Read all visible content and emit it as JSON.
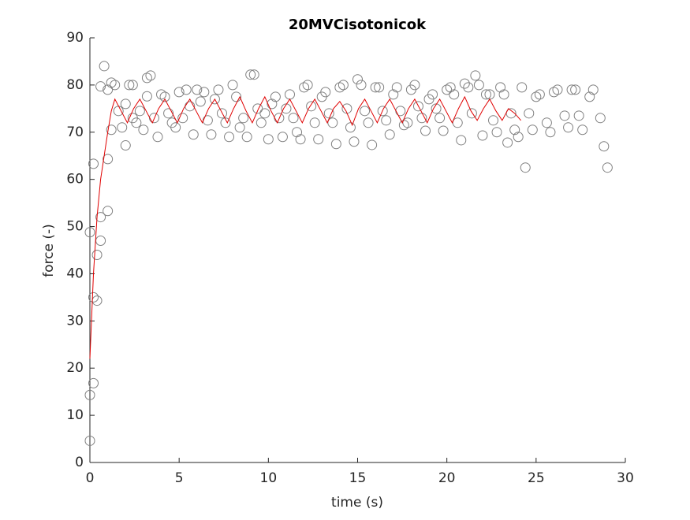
{
  "chart_data": {
    "type": "scatter",
    "title": "20MVCisotonicok",
    "x_label": "time (s)",
    "y_label": "force (-)",
    "xlim": [
      0,
      30
    ],
    "xticks": [
      0,
      5,
      10,
      15,
      20,
      25,
      30
    ],
    "ylim": [
      0,
      90
    ],
    "yticks": [
      0,
      10,
      20,
      30,
      40,
      50,
      60,
      70,
      80,
      90
    ],
    "series": [
      {
        "type": "scatter",
        "color": "#808080",
        "x": [
          0,
          0,
          0.2,
          0,
          0.2,
          0.2,
          0.4,
          0.4,
          0.6,
          0.6,
          1,
          1,
          0.6,
          0.8,
          1,
          1.2,
          1.2,
          1.4,
          1.6,
          1.8,
          2,
          2,
          2.2,
          2.4,
          2.4,
          2.6,
          2.8,
          3,
          3.2,
          3.4,
          3.2,
          3.6,
          3.8,
          4,
          4.2,
          4.4,
          4.6,
          4.8,
          5,
          5.2,
          5.4,
          5.6,
          5.8,
          6,
          6.2,
          6.4,
          6.6,
          6.8,
          7,
          7.2,
          7.4,
          7.6,
          7.8,
          8,
          8.2,
          8.4,
          8.6,
          8.8,
          9,
          9.2,
          9.4,
          9.6,
          9.8,
          10,
          10.2,
          10.4,
          10.6,
          10.8,
          11,
          11.2,
          11.4,
          11.6,
          11.8,
          12,
          12.2,
          12.4,
          12.6,
          12.8,
          13,
          13.2,
          13.4,
          13.6,
          13.8,
          14,
          14.2,
          14.4,
          14.6,
          14.8,
          15,
          15.2,
          15.4,
          15.6,
          15.8,
          16,
          16.2,
          16.4,
          16.6,
          16.8,
          17,
          17.2,
          17.4,
          17.6,
          17.8,
          18,
          18.2,
          18.4,
          18.6,
          18.8,
          19,
          19.2,
          19.4,
          19.6,
          19.8,
          20,
          20.2,
          20.4,
          20.6,
          20.8,
          21,
          21.2,
          21.4,
          21.6,
          21.8,
          22,
          22.2,
          22.4,
          22.6,
          22.8,
          23,
          23.2,
          23.4,
          23.6,
          23.8,
          24,
          24.2,
          24.4,
          24.6,
          24.8,
          25,
          25.2,
          25.6,
          25.8,
          26,
          26.2,
          26.6,
          26.8,
          27,
          27.2,
          27.4,
          27.6,
          28,
          28.2,
          28.6,
          28.8,
          29
        ],
        "values": [
          4.6,
          14.3,
          16.8,
          48.8,
          63.3,
          35,
          34.3,
          44,
          47,
          52,
          53.3,
          64.3,
          79.7,
          84,
          79,
          80.5,
          70.5,
          80,
          74.5,
          71,
          76,
          67.2,
          80,
          73,
          80,
          72,
          74.5,
          70.5,
          81.5,
          82,
          77.6,
          73,
          69,
          78,
          77.5,
          74,
          72,
          71,
          78.5,
          73,
          79,
          75.5,
          69.5,
          79,
          76.5,
          78.5,
          72.5,
          69.5,
          77,
          79,
          74,
          72,
          69,
          80,
          77.5,
          71,
          73,
          69,
          82.2,
          82.2,
          75,
          72,
          74,
          68.5,
          76,
          77.5,
          73,
          69,
          75,
          78,
          73,
          70,
          68.5,
          79.5,
          80,
          75.5,
          72,
          68.5,
          77.5,
          78.5,
          74,
          72,
          67.5,
          79.5,
          80,
          75,
          71,
          68,
          81.2,
          80,
          74.5,
          72,
          67.3,
          79.5,
          79.5,
          74.5,
          72.5,
          69.5,
          78,
          79.5,
          74.5,
          71.5,
          72,
          79,
          80,
          75.5,
          73,
          70.3,
          77,
          78,
          75,
          73,
          70.3,
          79,
          79.5,
          78,
          72,
          68.3,
          80.3,
          79.5,
          74,
          82,
          80,
          69.3,
          78,
          78,
          72.5,
          70,
          79.5,
          78,
          67.8,
          74,
          70.5,
          69,
          79.5,
          62.5,
          74,
          70.5,
          77.5,
          78,
          72,
          70,
          78.5,
          79,
          73.5,
          71,
          79,
          79,
          73.5,
          70.5,
          77.5,
          79,
          73,
          67,
          62.5
        ]
      },
      {
        "type": "line",
        "color": "#e00000",
        "x": [
          0,
          0.2,
          0.4,
          0.6,
          0.8,
          1.0,
          1.2,
          1.4,
          1.75,
          2.1,
          2.45,
          2.8,
          3.15,
          3.5,
          3.85,
          4.2,
          4.55,
          4.9,
          5.25,
          5.6,
          5.95,
          6.3,
          6.65,
          7.0,
          7.35,
          7.7,
          8.05,
          8.4,
          8.75,
          9.1,
          9.45,
          9.8,
          10.15,
          10.5,
          10.85,
          11.2,
          11.55,
          11.9,
          12.25,
          12.6,
          12.95,
          13.3,
          13.65,
          14.0,
          14.35,
          14.7,
          15.05,
          15.4,
          15.75,
          16.1,
          16.45,
          16.8,
          17.15,
          17.5,
          17.85,
          18.2,
          18.55,
          18.9,
          19.25,
          19.6,
          19.95,
          20.3,
          20.65,
          21.0,
          21.35,
          21.7,
          22.05,
          22.4,
          22.75,
          23.1,
          23.45,
          23.8,
          24.15
        ],
        "values": [
          22,
          40,
          52,
          60,
          65,
          70,
          74.5,
          77,
          74.5,
          72,
          75,
          77,
          74.5,
          72,
          75,
          77,
          74.5,
          72,
          75,
          77,
          74.5,
          72,
          75,
          77,
          74.5,
          72,
          75,
          77.5,
          74.5,
          72,
          75,
          77.5,
          74.5,
          72,
          75,
          77,
          74.5,
          72,
          75,
          77,
          74.5,
          72,
          75,
          76.5,
          74.5,
          71.5,
          75,
          77,
          74.5,
          72,
          75,
          77,
          74.5,
          72,
          75,
          77,
          74.5,
          72,
          75,
          77,
          74.5,
          72,
          75,
          77.5,
          74.5,
          72.5,
          75,
          77,
          74.5,
          72.5,
          75,
          74,
          72.5
        ]
      }
    ]
  }
}
